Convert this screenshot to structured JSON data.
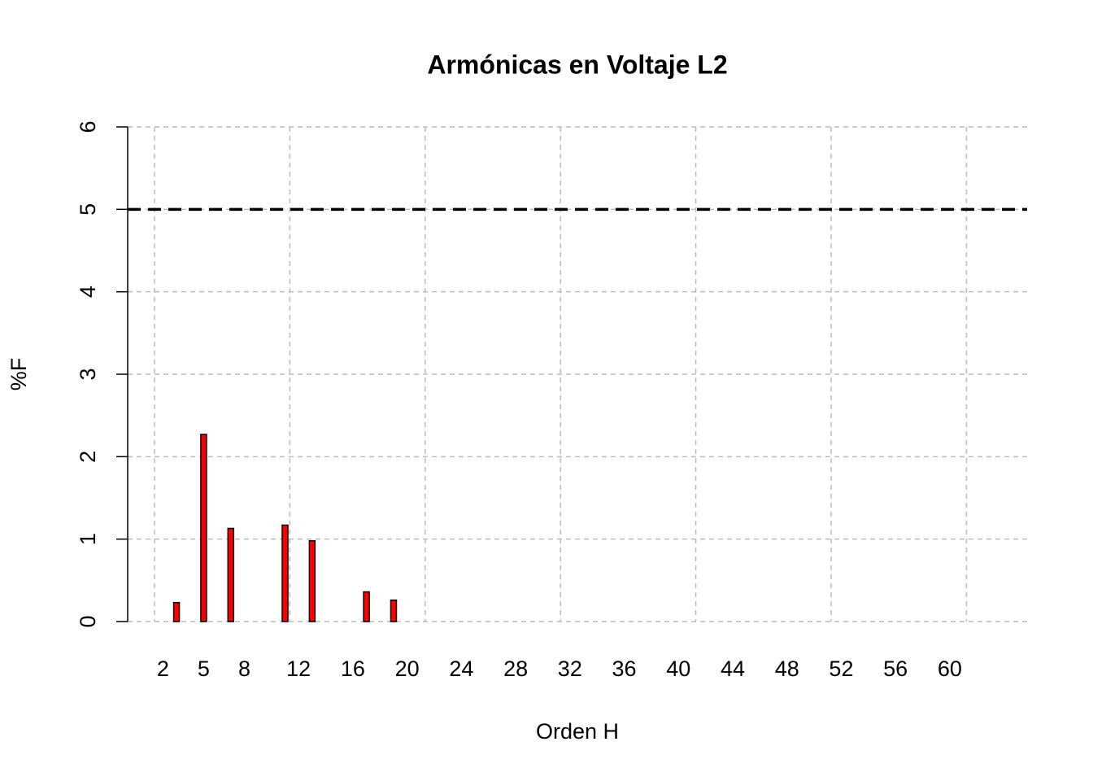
{
  "chart_data": {
    "type": "bar",
    "title": "Armónicas en Voltaje L2",
    "x_label": "Orden H",
    "y_label": "%F",
    "x": [
      2,
      3,
      4,
      5,
      6,
      7,
      8,
      9,
      10,
      11,
      12,
      13,
      14,
      15,
      16,
      17,
      18,
      19,
      20,
      21,
      22,
      23,
      24,
      25,
      26,
      27,
      28,
      29,
      30,
      31,
      32,
      33,
      34,
      35,
      36,
      37,
      38,
      39,
      40,
      41,
      42,
      43,
      44,
      45,
      46,
      47,
      48,
      49,
      50,
      51,
      52,
      53,
      54,
      55,
      56,
      57,
      58,
      59,
      60,
      61,
      62,
      63
    ],
    "values": [
      0,
      0.23,
      0,
      2.27,
      0,
      1.13,
      0,
      0,
      0,
      1.17,
      0,
      0.98,
      0,
      0,
      0,
      0.36,
      0,
      0.26,
      0,
      0,
      0,
      0,
      0,
      0,
      0,
      0,
      0,
      0,
      0,
      0,
      0,
      0,
      0,
      0,
      0,
      0,
      0,
      0,
      0,
      0,
      0,
      0,
      0,
      0,
      0,
      0,
      0,
      0,
      0,
      0,
      0,
      0,
      0,
      0,
      0,
      0,
      0,
      0,
      0,
      0,
      0,
      0
    ],
    "color": "#ff0000",
    "xlim": [
      -0.6,
      65.7
    ],
    "xticks": [
      2,
      5,
      8,
      12,
      16,
      20,
      24,
      28,
      32,
      36,
      40,
      44,
      48,
      52,
      56,
      60
    ],
    "ylim": [
      0,
      6
    ],
    "yticks": [
      0,
      1,
      2,
      3,
      4,
      5,
      6
    ],
    "reference_line": 5,
    "grid": true
  }
}
